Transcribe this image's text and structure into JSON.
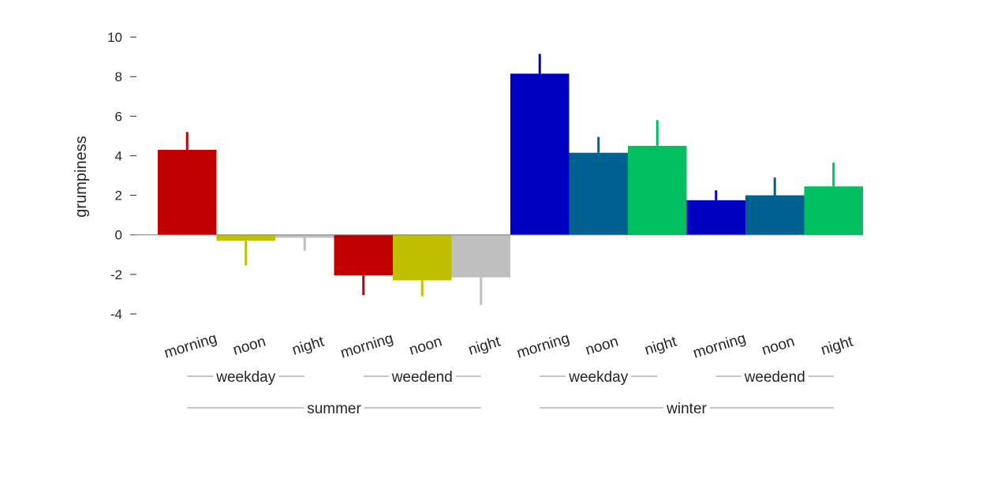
{
  "chart_data": {
    "type": "bar",
    "ylabel": "grumpiness",
    "xlabel": "",
    "title": "",
    "ylim": [
      -4,
      10
    ],
    "yticks": [
      -4,
      -2,
      0,
      2,
      4,
      6,
      8,
      10
    ],
    "bars": [
      {
        "category": "morning",
        "value": 4.3,
        "error": 0.9,
        "color": "#C00000"
      },
      {
        "category": "noon",
        "value": -0.3,
        "error": 1.25,
        "color": "#BFBF00"
      },
      {
        "category": "night",
        "value": -0.15,
        "error": 0.65,
        "color": "#BFBFBF"
      },
      {
        "category": "morning",
        "value": -2.05,
        "error": 1.0,
        "color": "#C00000"
      },
      {
        "category": "noon",
        "value": -2.3,
        "error": 0.8,
        "color": "#BFBF00"
      },
      {
        "category": "night",
        "value": -2.15,
        "error": 1.4,
        "color": "#BFBFBF"
      },
      {
        "category": "morning",
        "value": 8.15,
        "error": 1.0,
        "color": "#0000C0"
      },
      {
        "category": "noon",
        "value": 4.15,
        "error": 0.8,
        "color": "#00608F"
      },
      {
        "category": "night",
        "value": 4.5,
        "error": 1.3,
        "color": "#00BF60"
      },
      {
        "category": "morning",
        "value": 1.75,
        "error": 0.5,
        "color": "#0000C0"
      },
      {
        "category": "noon",
        "value": 2.0,
        "error": 0.9,
        "color": "#00608F"
      },
      {
        "category": "night",
        "value": 2.45,
        "error": 1.2,
        "color": "#00BF60"
      }
    ],
    "subgroups": [
      {
        "label": "weekday",
        "from": 0,
        "to": 2
      },
      {
        "label": "weedend",
        "from": 3,
        "to": 5
      },
      {
        "label": "weekday",
        "from": 6,
        "to": 8
      },
      {
        "label": "weedend",
        "from": 9,
        "to": 11
      }
    ],
    "groups": [
      {
        "label": "summer",
        "from": 0,
        "to": 5
      },
      {
        "label": "winter",
        "from": 6,
        "to": 11
      }
    ]
  }
}
